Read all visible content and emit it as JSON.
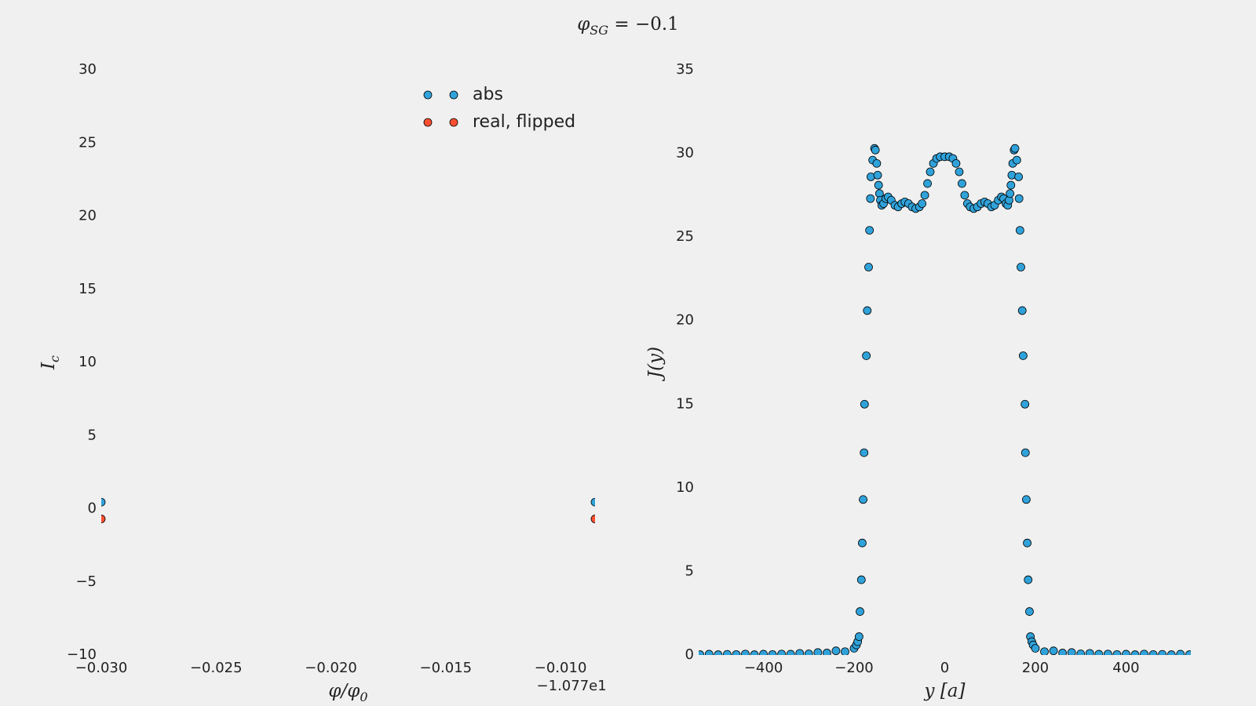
{
  "title": {
    "main": "φ",
    "sub": "SG",
    "rest": " = −0.1"
  },
  "chart_data": [
    {
      "type": "scatter",
      "xlabel": {
        "main": "φ/φ",
        "sub": "0"
      },
      "ylabel": {
        "main": "I",
        "sub": "c"
      },
      "x_offset_label": "−1.077e1",
      "x": [
        -0.03,
        -0.0085
      ],
      "series": [
        {
          "name": "abs",
          "color": "#30a2da",
          "values": [
            0.45,
            0.45
          ]
        },
        {
          "name": "real, flipped",
          "color": "#fc4f30",
          "values": [
            -0.7,
            -0.7
          ]
        }
      ],
      "legend": "upper right",
      "xlim": [
        -0.03,
        -0.0085
      ],
      "xticks": [
        {
          "value": -0.03,
          "label": "−0.030"
        },
        {
          "value": -0.025,
          "label": "−0.025"
        },
        {
          "value": -0.02,
          "label": "−0.020"
        },
        {
          "value": -0.015,
          "label": "−0.015"
        },
        {
          "value": -0.01,
          "label": "−0.010"
        }
      ],
      "ylim": [
        -10,
        30
      ],
      "yticks": [
        {
          "value": -10,
          "label": "−10"
        },
        {
          "value": -5,
          "label": "−5"
        },
        0,
        5,
        10,
        15,
        20,
        25,
        30
      ]
    },
    {
      "type": "scatter",
      "xlabel": {
        "main": "y [a]"
      },
      "ylabel": {
        "main": "J(y)"
      },
      "color": "#30a2da",
      "x": [
        -540,
        -520,
        -500,
        -480,
        -460,
        -440,
        -420,
        -400,
        -380,
        -360,
        -340,
        -320,
        -300,
        -280,
        -260,
        -240,
        -220,
        -200,
        -195,
        -192,
        -189,
        -187,
        -184,
        -182,
        -180,
        -178,
        -177,
        -173,
        -171,
        -168,
        -166,
        -164,
        -163,
        -159,
        -155,
        -153,
        -150,
        -148,
        -146,
        -144,
        -142,
        -139,
        -135,
        -130,
        -125,
        -118,
        -110,
        -103,
        -95,
        -88,
        -80,
        -72,
        -64,
        -56,
        -50,
        -44,
        -38,
        -32,
        -25,
        -18,
        -10,
        0,
        10,
        18,
        25,
        32,
        38,
        44,
        50,
        56,
        64,
        72,
        80,
        88,
        95,
        103,
        110,
        118,
        125,
        130,
        135,
        139,
        142,
        144,
        146,
        148,
        150,
        153,
        155,
        159,
        163,
        164,
        166,
        168,
        171,
        173,
        177,
        178,
        180,
        182,
        184,
        187,
        189,
        192,
        195,
        200,
        220,
        240,
        260,
        280,
        300,
        320,
        340,
        360,
        380,
        400,
        420,
        440,
        460,
        480,
        500,
        520,
        540
      ],
      "values": [
        0.02,
        0.05,
        0.02,
        0.04,
        0.03,
        0.06,
        0.02,
        0.05,
        0.03,
        0.06,
        0.05,
        0.1,
        0.07,
        0.15,
        0.12,
        0.25,
        0.2,
        0.4,
        0.6,
        0.8,
        1.1,
        2.6,
        4.5,
        6.7,
        9.3,
        12.1,
        15,
        17.9,
        20.6,
        23.2,
        25.4,
        27.3,
        28.6,
        29.6,
        30.3,
        30.2,
        29.4,
        28.7,
        28.1,
        27.6,
        27.2,
        26.9,
        27.0,
        27.3,
        27.4,
        27.2,
        26.9,
        26.8,
        27.0,
        27.1,
        27.0,
        26.8,
        26.7,
        26.8,
        27.0,
        27.5,
        28.2,
        28.9,
        29.4,
        29.7,
        29.8,
        29.8,
        29.8,
        29.7,
        29.4,
        28.9,
        28.2,
        27.5,
        27.0,
        26.8,
        26.7,
        26.8,
        27.0,
        27.1,
        27.0,
        26.8,
        26.9,
        27.2,
        27.4,
        27.3,
        27.0,
        26.9,
        27.2,
        27.6,
        28.1,
        28.7,
        29.4,
        30.2,
        30.3,
        29.6,
        28.6,
        27.3,
        25.4,
        23.2,
        20.6,
        17.9,
        15,
        12.1,
        9.3,
        6.7,
        4.5,
        2.6,
        1.1,
        0.8,
        0.6,
        0.4,
        0.2,
        0.25,
        0.12,
        0.15,
        0.07,
        0.1,
        0.05,
        0.06,
        0.03,
        0.05,
        0.02,
        0.06,
        0.03,
        0.04,
        0.02,
        0.05,
        0.02
      ],
      "xlim": [
        -543,
        543
      ],
      "xticks": [
        {
          "value": -400,
          "label": "−400"
        },
        {
          "value": -200,
          "label": "−200"
        },
        0,
        200,
        400
      ],
      "ylim": [
        0,
        35
      ],
      "yticks": [
        0,
        5,
        10,
        15,
        20,
        25,
        30,
        35
      ]
    }
  ]
}
